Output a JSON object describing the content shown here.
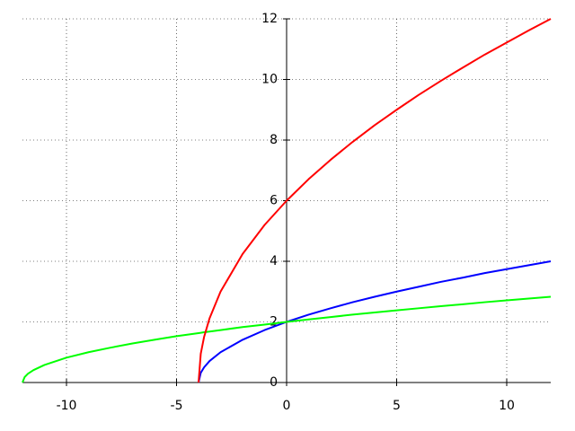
{
  "chart_data": {
    "type": "line",
    "x": [
      -12,
      -11.9,
      -11.75,
      -11.5,
      -11,
      -10,
      -9,
      -8,
      -7,
      -6,
      -5,
      -4,
      -3.9,
      -3.75,
      -3.5,
      -3,
      -2,
      -1,
      0,
      1,
      2,
      3,
      4,
      5,
      6,
      7,
      8,
      9,
      10,
      11,
      12
    ],
    "series": [
      {
        "color": "#0000ff",
        "values": [
          null,
          null,
          null,
          null,
          null,
          null,
          null,
          null,
          null,
          null,
          null,
          0,
          0.32,
          0.5,
          0.71,
          1,
          1.41,
          1.73,
          2,
          2.24,
          2.45,
          2.65,
          2.83,
          3,
          3.16,
          3.32,
          3.46,
          3.61,
          3.74,
          3.87,
          4
        ]
      },
      {
        "color": "#00ff00",
        "values": [
          0,
          0.18,
          0.29,
          0.41,
          0.58,
          0.82,
          1,
          1.15,
          1.29,
          1.41,
          1.53,
          1.63,
          1.64,
          1.66,
          1.68,
          1.73,
          1.83,
          1.91,
          2,
          2.08,
          2.16,
          2.24,
          2.31,
          2.38,
          2.45,
          2.52,
          2.58,
          2.65,
          2.71,
          2.77,
          2.83
        ]
      },
      {
        "color": "#ff0000",
        "values": [
          null,
          null,
          null,
          null,
          null,
          null,
          null,
          null,
          null,
          null,
          null,
          0,
          0.95,
          1.5,
          2.12,
          3,
          4.24,
          5.2,
          6,
          6.71,
          7.35,
          7.94,
          8.49,
          9,
          9.49,
          9.95,
          10.39,
          10.82,
          11.22,
          11.62,
          12
        ]
      }
    ],
    "xlim": [
      -12,
      12
    ],
    "ylim": [
      0,
      12
    ],
    "xticks": [
      -10,
      -5,
      0,
      5,
      10
    ],
    "yticks": [
      0,
      2,
      4,
      6,
      8,
      10,
      12
    ],
    "grid": true
  }
}
